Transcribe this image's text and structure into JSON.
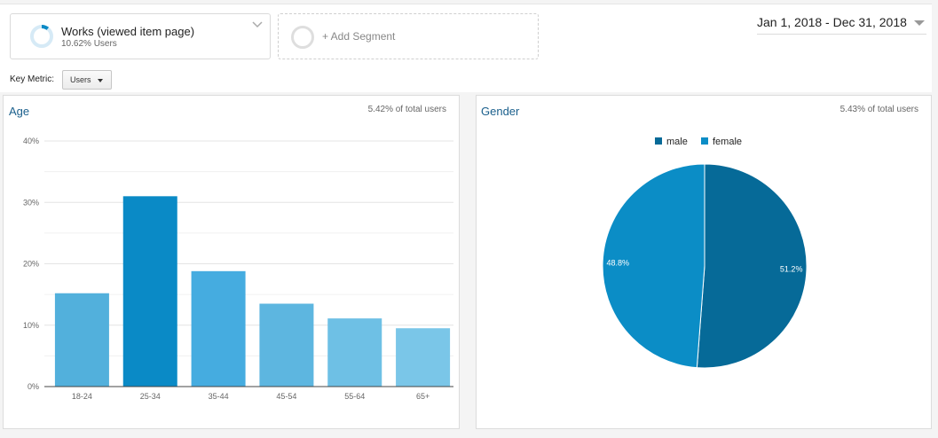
{
  "segment": {
    "name": "Works (viewed item page)",
    "subtitle": "10.62% Users",
    "fraction": 0.1062
  },
  "add_segment": {
    "label": "+ Add Segment"
  },
  "date_range": {
    "label": "Jan 1, 2018 - Dec 31, 2018"
  },
  "key_metric": {
    "label": "Key Metric:",
    "value": "Users"
  },
  "age_card": {
    "title": "Age",
    "note": "5.42% of total users"
  },
  "gender_card": {
    "title": "Gender",
    "note": "5.43% of total users"
  },
  "colors": {
    "accent": "#058dc7",
    "male": "#066a98",
    "female": "#0b8dc6",
    "bars": [
      "#52b0dc",
      "#0a8ac6",
      "#45ace0",
      "#5db6e0",
      "#6ec0e5",
      "#7ac6e8"
    ]
  },
  "chart_data": [
    {
      "type": "bar",
      "title": "Age",
      "categories": [
        "18-24",
        "25-34",
        "35-44",
        "45-54",
        "55-64",
        "65+"
      ],
      "values": [
        15.2,
        31.0,
        18.8,
        13.5,
        11.1,
        9.5
      ],
      "yticks": [
        "0%",
        "10%",
        "20%",
        "30%",
        "40%"
      ],
      "ylim": [
        0,
        40
      ],
      "grid": true
    },
    {
      "type": "pie",
      "title": "Gender",
      "labels": [
        "male",
        "female"
      ],
      "values": [
        51.2,
        48.8
      ],
      "slice_labels": [
        "51.2%",
        "48.8%"
      ],
      "legend": "top"
    }
  ]
}
